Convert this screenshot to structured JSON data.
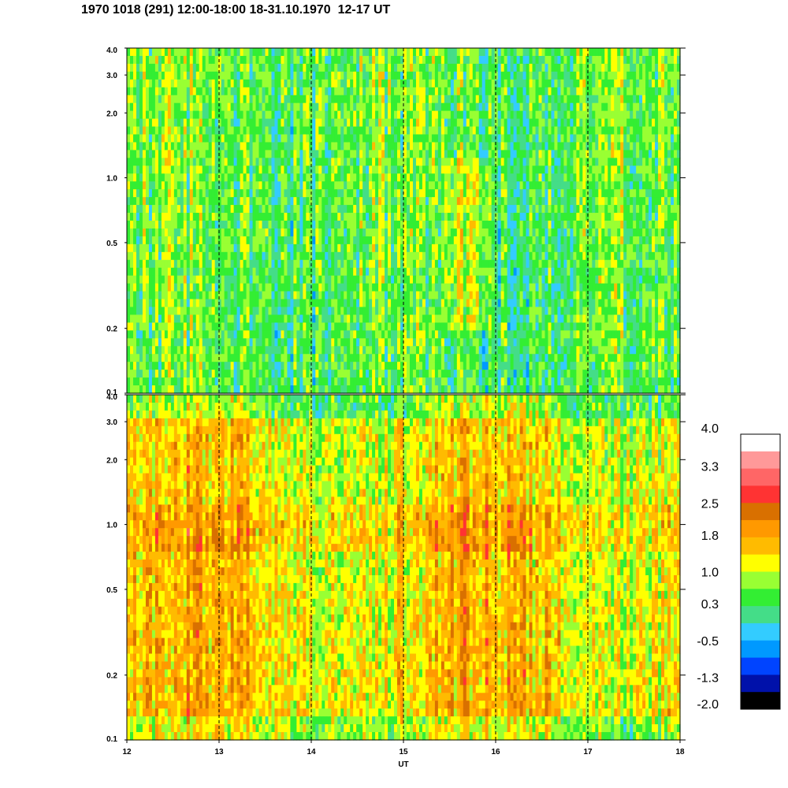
{
  "title": "1970 1018 (291) 12:00-18:00 18-31.10.1970  12-17 UT",
  "chart_data": [
    {
      "type": "heatmap",
      "panel": "upper",
      "x_range": [
        12,
        18
      ],
      "y_range": [
        0.1,
        4.0
      ],
      "y_scale": "log",
      "y_ticks": [
        "0.1",
        "0.2",
        "0.5",
        "1.0",
        "2.0",
        "3.0",
        "4.0"
      ],
      "dominant_levels": [
        0.3,
        1.0,
        -0.5
      ],
      "vertical_gridlines": [
        13,
        14,
        15,
        16,
        17
      ]
    },
    {
      "type": "heatmap",
      "panel": "lower",
      "x_range": [
        12,
        18
      ],
      "y_range": [
        0.1,
        4.0
      ],
      "y_scale": "log",
      "y_ticks": [
        "0.1",
        "0.2",
        "0.5",
        "1.0",
        "2.0",
        "3.0",
        "4.0"
      ],
      "dominant_levels": [
        1.0,
        1.8
      ],
      "vertical_gridlines": [
        13,
        14,
        15,
        16,
        17
      ]
    }
  ],
  "x_axis": {
    "label": "UT",
    "ticks": [
      "12",
      "13",
      "14",
      "15",
      "16",
      "17",
      "18"
    ]
  },
  "colorbar": {
    "labels": [
      "4.0",
      "3.3",
      "2.5",
      "1.8",
      "1.0",
      "0.3",
      "-0.5",
      "-1.3",
      "-2.0"
    ],
    "colors": [
      "#ffffff",
      "#ff9999",
      "#ff6666",
      "#ff3333",
      "#d97000",
      "#ff9900",
      "#ffbb00",
      "#ffff00",
      "#99ff33",
      "#33ee33",
      "#44dd88",
      "#33ccff",
      "#0099ff",
      "#0044ff",
      "#0011aa",
      "#000000"
    ]
  }
}
